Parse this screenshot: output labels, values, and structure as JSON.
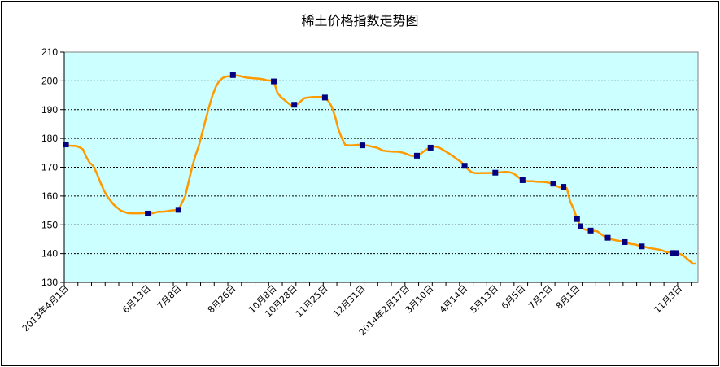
{
  "chart_data": {
    "type": "line",
    "title": "稀土价格指数走势图",
    "xlabel": "",
    "ylabel": "",
    "ylim": [
      130,
      210
    ],
    "yticks": [
      130,
      140,
      150,
      160,
      170,
      180,
      190,
      200,
      210
    ],
    "grid": "horizontal dashed",
    "legend": "none",
    "plot_background": "#ccffff",
    "line_color": "#ff9900",
    "marker_color": "#000080",
    "x_tick_labels": [
      {
        "label": "2013年4月1日",
        "index": 0
      },
      {
        "label": "6月13日",
        "index": 24
      },
      {
        "label": "7月8日",
        "index": 33
      },
      {
        "label": "8月26日",
        "index": 49
      },
      {
        "label": "10月8日",
        "index": 61
      },
      {
        "label": "10月28日",
        "index": 67
      },
      {
        "label": "11月25日",
        "index": 76
      },
      {
        "label": "12月31日",
        "index": 87
      },
      {
        "label": "2014年2月17日",
        "index": 100
      },
      {
        "label": "3月10日",
        "index": 107
      },
      {
        "label": "4月14日",
        "index": 117
      },
      {
        "label": "5月13日",
        "index": 126
      },
      {
        "label": "6月5日",
        "index": 134
      },
      {
        "label": "7月2日",
        "index": 142
      },
      {
        "label": "8月1日",
        "index": 150
      },
      {
        "label": "11月3日",
        "index": 180
      }
    ],
    "series": [
      {
        "values": [
          177.9,
          177.5,
          177.4,
          177.4,
          176.9,
          176.2,
          173.5,
          171.5,
          170.5,
          168.0,
          165.0,
          162.3,
          160.0,
          158.5,
          157.0,
          156.0,
          155.0,
          154.5,
          154.1,
          154.0,
          154.0,
          154.0,
          154.0,
          154.1,
          153.9,
          153.9,
          154.2,
          154.5,
          154.5,
          154.6,
          154.8,
          155.0,
          155.1,
          155.2,
          157.5,
          160.0,
          165.0,
          170.0,
          174.0,
          177.5,
          182.0,
          186.5,
          191.0,
          195.0,
          198.0,
          200.0,
          201.0,
          201.5,
          201.6,
          202.0,
          201.9,
          201.7,
          201.4,
          201.1,
          201.0,
          200.9,
          200.8,
          200.7,
          200.5,
          200.2,
          200.1,
          199.8,
          196.0,
          194.5,
          193.5,
          192.5,
          191.5,
          191.7,
          192.0,
          193.0,
          194.0,
          194.2,
          194.3,
          194.4,
          194.4,
          194.4,
          194.2,
          193.0,
          191.0,
          187.5,
          183.0,
          180.0,
          177.7,
          177.6,
          177.6,
          177.7,
          177.8,
          177.6,
          177.6,
          177.4,
          177.1,
          176.9,
          176.4,
          175.8,
          175.6,
          175.5,
          175.4,
          175.4,
          175.3,
          175.0,
          174.6,
          174.1,
          173.9,
          174.0,
          174.6,
          175.5,
          176.3,
          176.8,
          177.2,
          177.0,
          176.5,
          175.8,
          175.1,
          174.3,
          173.5,
          172.6,
          171.8,
          170.5,
          169.3,
          168.3,
          168.0,
          167.9,
          168.0,
          168.0,
          168.0,
          168.0,
          168.1,
          168.2,
          168.3,
          168.4,
          168.3,
          168.0,
          167.3,
          166.3,
          165.5,
          165.2,
          165.1,
          165.1,
          165.0,
          164.9,
          164.9,
          164.8,
          164.5,
          164.3,
          163.4,
          163.0,
          163.2,
          162.7,
          158.0,
          155.5,
          152.0,
          149.5,
          148.5,
          148.1,
          148.0,
          147.9,
          147.7,
          146.8,
          146.0,
          145.5,
          145.0,
          144.7,
          144.5,
          144.3,
          144.0,
          143.6,
          143.3,
          143.2,
          142.8,
          142.5,
          142.3,
          142.0,
          141.8,
          141.6,
          141.4,
          141.1,
          140.6,
          140.4,
          140.2,
          140.2,
          140.0,
          139.5,
          138.5,
          137.5,
          136.5,
          136.5
        ],
        "marker_indices": [
          0,
          24,
          33,
          49,
          61,
          67,
          76,
          87,
          103,
          107,
          117,
          126,
          134,
          143,
          146,
          150,
          151,
          154,
          159,
          164,
          169,
          178,
          179
        ]
      }
    ]
  }
}
